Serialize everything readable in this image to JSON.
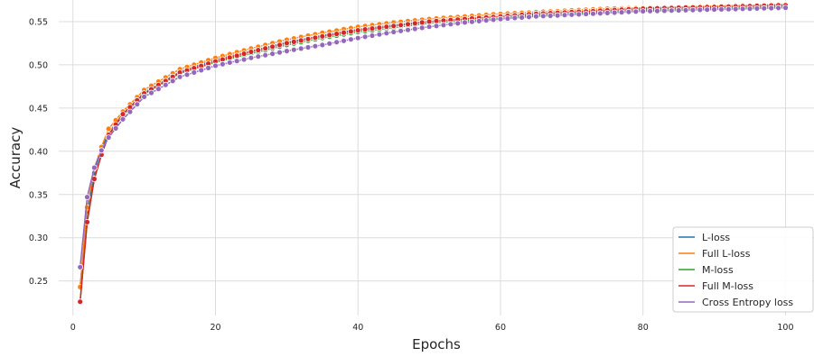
{
  "chart_data": {
    "type": "line",
    "title": "",
    "xlabel": "Epochs",
    "ylabel": "Accuracy",
    "xlim": [
      -2,
      104
    ],
    "ylim": [
      0.21,
      0.575
    ],
    "x_ticks": [
      0,
      20,
      40,
      60,
      80,
      100
    ],
    "y_ticks": [
      0.25,
      0.3,
      0.35,
      0.4,
      0.45,
      0.5,
      0.55
    ],
    "y_tick_labels": [
      "0.25",
      "0.30",
      "0.35",
      "0.40",
      "0.45",
      "0.50",
      "0.55"
    ],
    "grid": true,
    "legend_position": "bottom-right",
    "markers": true,
    "x": [
      1,
      2,
      3,
      4,
      5,
      7,
      10,
      15,
      20,
      25,
      30,
      35,
      40,
      45,
      50,
      55,
      60,
      65,
      70,
      75,
      80,
      85,
      90,
      95,
      100
    ],
    "series": [
      {
        "name": "L-loss",
        "color": "#1f77b4",
        "values": [
          0.243,
          0.33,
          0.375,
          0.403,
          0.421,
          0.443,
          0.468,
          0.492,
          0.506,
          0.516,
          0.526,
          0.534,
          0.541,
          0.546,
          0.55,
          0.553,
          0.556,
          0.558,
          0.56,
          0.562,
          0.564,
          0.565,
          0.566,
          0.567,
          0.568
        ]
      },
      {
        "name": "Full L-loss",
        "color": "#ff7f0e",
        "values": [
          0.243,
          0.335,
          0.38,
          0.405,
          0.426,
          0.446,
          0.471,
          0.495,
          0.508,
          0.519,
          0.529,
          0.537,
          0.544,
          0.549,
          0.553,
          0.556,
          0.559,
          0.561,
          0.563,
          0.565,
          0.566,
          0.567,
          0.568,
          0.569,
          0.57
        ]
      },
      {
        "name": "M-loss",
        "color": "#2ca02c",
        "values": [
          0.226,
          0.318,
          0.368,
          0.396,
          0.418,
          0.442,
          0.466,
          0.49,
          0.503,
          0.513,
          0.523,
          0.531,
          0.538,
          0.543,
          0.548,
          0.551,
          0.554,
          0.557,
          0.559,
          0.561,
          0.563,
          0.564,
          0.565,
          0.566,
          0.567
        ]
      },
      {
        "name": "Full M-loss",
        "color": "#d62728",
        "values": [
          0.226,
          0.318,
          0.368,
          0.396,
          0.419,
          0.443,
          0.467,
          0.491,
          0.504,
          0.515,
          0.525,
          0.533,
          0.54,
          0.545,
          0.55,
          0.553,
          0.556,
          0.559,
          0.561,
          0.563,
          0.565,
          0.566,
          0.567,
          0.568,
          0.569
        ]
      },
      {
        "name": "Cross Entropy loss",
        "color": "#9467bd",
        "values": [
          0.266,
          0.347,
          0.381,
          0.401,
          0.416,
          0.437,
          0.463,
          0.486,
          0.499,
          0.508,
          0.516,
          0.523,
          0.531,
          0.538,
          0.544,
          0.549,
          0.553,
          0.556,
          0.558,
          0.56,
          0.562,
          0.563,
          0.564,
          0.565,
          0.566
        ]
      }
    ]
  }
}
